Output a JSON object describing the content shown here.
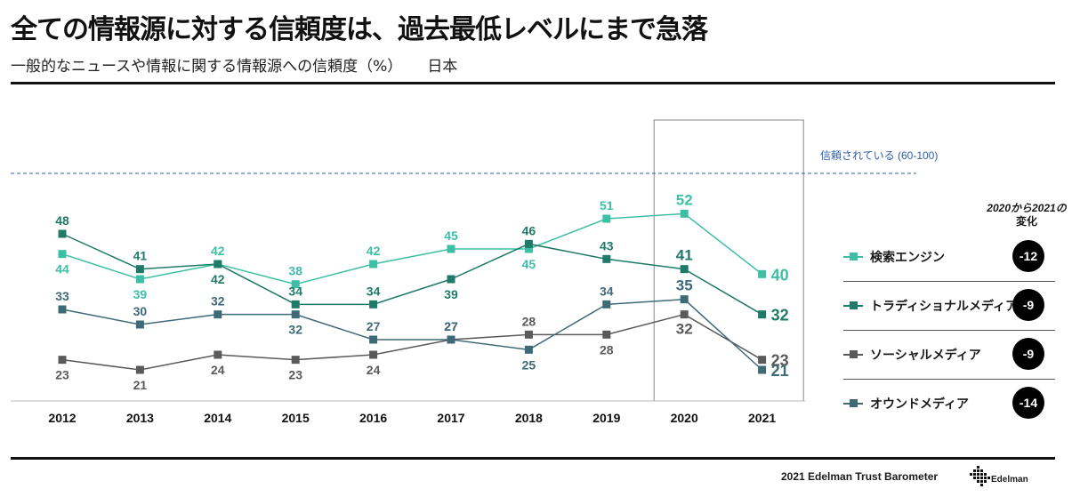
{
  "header": {
    "title": "全ての情報源に対する信頼度は、過去最低レベルにまで急落",
    "subtitle": "一般的なニュースや情報に関する情報源への信頼度（%）",
    "region": "日本"
  },
  "chart_data": {
    "type": "line",
    "x": [
      "2012",
      "2013",
      "2014",
      "2015",
      "2016",
      "2017",
      "2018",
      "2019",
      "2020",
      "2021"
    ],
    "ylim": [
      15,
      60
    ],
    "reference_line": {
      "label": "信頼されている (60-100)",
      "value": 60
    },
    "highlight_category": "2020",
    "series": [
      {
        "name": "検索エンジン",
        "color": "#3dbfa5",
        "values": [
          44,
          39,
          42,
          38,
          42,
          45,
          45,
          51,
          52,
          40
        ],
        "labels": [
          "44",
          "39",
          "42",
          "38",
          "42",
          "45",
          "45",
          "51",
          "52",
          "40"
        ]
      },
      {
        "name": "トラディショナルメディア",
        "color": "#1f7a68",
        "values": [
          48,
          41,
          42,
          34,
          34,
          39,
          46,
          43,
          41,
          32
        ],
        "labels": [
          "48",
          "41",
          "42",
          "34",
          "34",
          "39",
          "46",
          "43",
          "41",
          "32"
        ]
      },
      {
        "name": "ソーシャルメディア",
        "color": "#5a5a5a",
        "values": [
          23,
          21,
          24,
          23,
          24,
          27,
          28,
          28,
          32,
          23
        ],
        "labels": [
          "23",
          "21",
          "24",
          "23",
          "24",
          "27",
          "28",
          "28",
          "32",
          "23"
        ]
      },
      {
        "name": "オウンドメディア",
        "color": "#3e6a78",
        "values": [
          33,
          30,
          32,
          32,
          27,
          27,
          25,
          34,
          35,
          21
        ],
        "labels": [
          "33",
          "30",
          "32",
          "32",
          "27",
          "27",
          "25",
          "34",
          "35",
          "21"
        ]
      }
    ]
  },
  "change": {
    "header_line1": "2020から2021の",
    "header_line2": "変化",
    "items": [
      {
        "name": "検索エンジン",
        "value": "-12",
        "color": "#3dbfa5"
      },
      {
        "name": "トラディショナルメディア",
        "value": "-9",
        "color": "#1f7a68"
      },
      {
        "name": "ソーシャルメディア",
        "value": "-9",
        "color": "#5a5a5a"
      },
      {
        "name": "オウンドメディア",
        "value": "-14",
        "color": "#3e6a78"
      }
    ]
  },
  "footer": {
    "source": "2021 Edelman Trust  Barometer",
    "logo_text": "Edelman"
  }
}
